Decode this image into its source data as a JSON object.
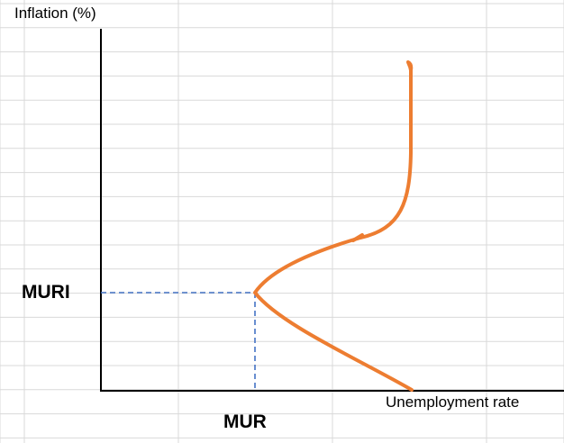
{
  "labels": {
    "y_axis": "Inflation (%)",
    "x_axis": "Unemployment rate",
    "mur": "MUR",
    "muri": "MURI"
  },
  "colors": {
    "curve": "#ED7D31",
    "guide": "#4472C4",
    "axis": "#000000",
    "grid": "#D9D9D9",
    "background": "#FFFFFF"
  }
}
